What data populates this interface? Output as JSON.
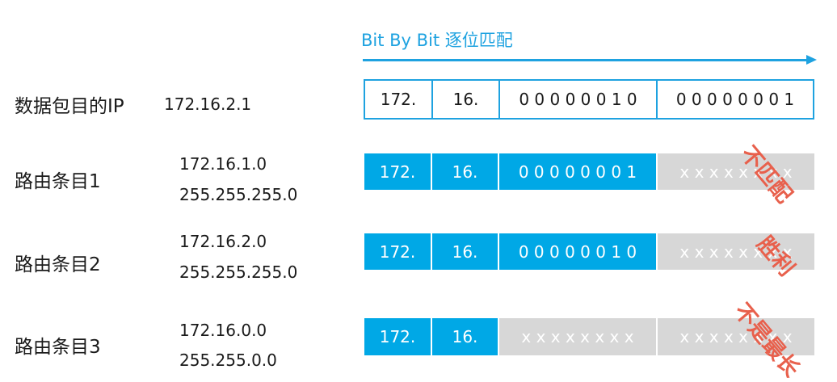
{
  "arrow": {
    "title": "Bit By Bit 逐位匹配",
    "color": "#1ea2e0"
  },
  "dest": {
    "label": "数据包目的IP",
    "ip": "172.16.2.1",
    "cells": [
      "172.",
      "16.",
      "0 0 0 0 0 0 1 0",
      "0 0 0 0 0 0 0 1"
    ]
  },
  "entries": [
    {
      "label": "路由条目1",
      "ip": "172.16.1.0",
      "mask": "255.255.255.0",
      "cells": [
        "172.",
        "16.",
        "0 0 0 0 0 0 0 1",
        "x x x x x x x x"
      ],
      "stamp": "不匹配"
    },
    {
      "label": "路由条目2",
      "ip": "172.16.2.0",
      "mask": "255.255.255.0",
      "cells": [
        "172.",
        "16.",
        "0 0 0 0 0 0 1 0",
        "x x x x x x x x"
      ],
      "stamp": "胜利"
    },
    {
      "label": "路由条目3",
      "ip": "172.16.0.0",
      "mask": "255.255.0.0",
      "cells": [
        "172.",
        "16.",
        "x x x x x x x x",
        "x x x x x x x x"
      ],
      "stamp": "不是最长"
    }
  ],
  "colors": {
    "matched": "#00a8e6",
    "wildcard": "#d7d7d7",
    "stamp": "#e8604c"
  }
}
